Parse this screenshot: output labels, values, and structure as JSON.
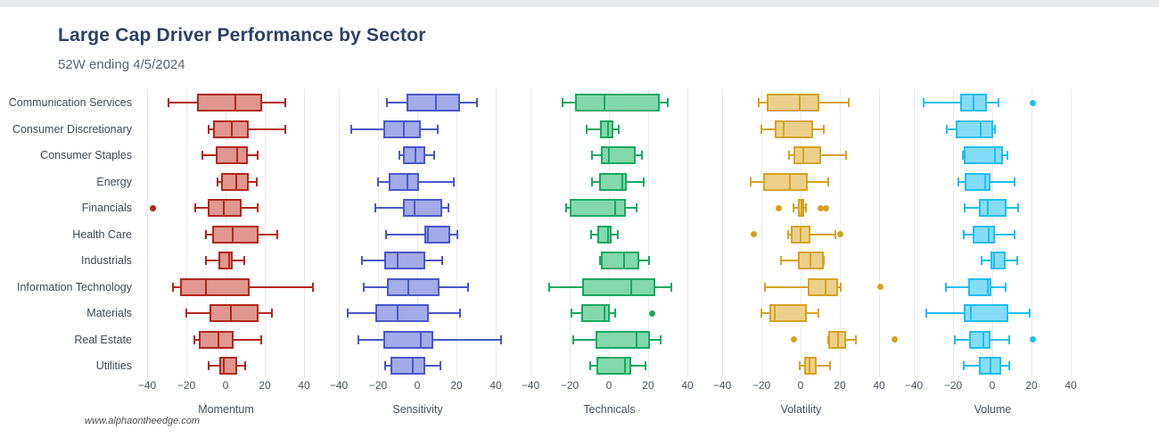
{
  "header": {
    "title": "Large Cap Driver Performance by Sector",
    "subtitle": "52W ending 4/5/2024"
  },
  "watermark": "www.alphaontheedge.com",
  "chart_data": {
    "type": "boxplot",
    "orientation": "horizontal",
    "grid": true,
    "categories": [
      "Communication Services",
      "Consumer Discretionary",
      "Consumer Staples",
      "Energy",
      "Financials",
      "Health Care",
      "Industrials",
      "Information Technology",
      "Materials",
      "Real Estate",
      "Utilities"
    ],
    "axis_ticks": [
      -40,
      -20,
      0,
      20,
      40
    ],
    "axis_range": [
      -44,
      48
    ],
    "panels": [
      {
        "name": "Momentum",
        "stroke": "#b2271d",
        "fill": "#df978f",
        "boxes": [
          {
            "low": -29,
            "q1": -14.5,
            "median": 5,
            "q3": 18.5,
            "high": 30.5,
            "outliers": []
          },
          {
            "low": -8.5,
            "q1": -6.5,
            "median": 3,
            "q3": 12,
            "high": 30.5,
            "outliers": []
          },
          {
            "low": -12,
            "q1": -5,
            "median": 6,
            "q3": 11.5,
            "high": 16.5,
            "outliers": []
          },
          {
            "low": -4,
            "q1": -2.5,
            "median": 5.5,
            "q3": 12,
            "high": 16,
            "outliers": []
          },
          {
            "low": -15.5,
            "q1": -9,
            "median": -1,
            "q3": 8,
            "high": 16.5,
            "outliers": [
              -37
            ]
          },
          {
            "low": -10,
            "q1": -7,
            "median": 3.5,
            "q3": 17,
            "high": 26.5,
            "outliers": []
          },
          {
            "low": -10,
            "q1": -3.5,
            "median": 2,
            "q3": 3.5,
            "high": 9.5,
            "outliers": []
          },
          {
            "low": -27,
            "q1": -23,
            "median": -10,
            "q3": 12.5,
            "high": 44.5,
            "outliers": []
          },
          {
            "low": -20,
            "q1": -8,
            "median": 2.5,
            "q3": 17,
            "high": 23.5,
            "outliers": []
          },
          {
            "low": -16,
            "q1": -13.5,
            "median": -3.5,
            "q3": 4,
            "high": 18,
            "outliers": []
          },
          {
            "low": -8.5,
            "q1": -3,
            "median": -1,
            "q3": 6,
            "high": 10,
            "outliers": []
          }
        ]
      },
      {
        "name": "Sensitivity",
        "stroke": "#4b57c9",
        "fill": "#a3abe8",
        "boxes": [
          {
            "low": -15.5,
            "q1": -5.5,
            "median": 9.5,
            "q3": 22,
            "high": 30.5,
            "outliers": []
          },
          {
            "low": -33.5,
            "q1": -17.5,
            "median": -7,
            "q3": 2,
            "high": 10.5,
            "outliers": []
          },
          {
            "low": -9,
            "q1": -7.5,
            "median": -1,
            "q3": 4,
            "high": 8.5,
            "outliers": []
          },
          {
            "low": -20,
            "q1": -14.5,
            "median": -5,
            "q3": 1,
            "high": 18.5,
            "outliers": []
          },
          {
            "low": -21.5,
            "q1": -7.5,
            "median": -1.5,
            "q3": 12.5,
            "high": 16,
            "outliers": []
          },
          {
            "low": -16,
            "q1": 3.5,
            "median": 5.5,
            "q3": 17,
            "high": 20.5,
            "outliers": []
          },
          {
            "low": -28,
            "q1": -17,
            "median": -10,
            "q3": 4,
            "high": 12.5,
            "outliers": []
          },
          {
            "low": -27.5,
            "q1": -15.5,
            "median": -4.5,
            "q3": 11.5,
            "high": 26,
            "outliers": []
          },
          {
            "low": -35.5,
            "q1": -21.5,
            "median": -10,
            "q3": 6,
            "high": 22,
            "outliers": []
          },
          {
            "low": -30,
            "q1": -17.5,
            "median": 2,
            "q3": 8,
            "high": 42.5,
            "outliers": []
          },
          {
            "low": -16.5,
            "q1": -13.5,
            "median": -2.5,
            "q3": 4,
            "high": 12,
            "outliers": []
          }
        ]
      },
      {
        "name": "Technicals",
        "stroke": "#17a862",
        "fill": "#82d8ab",
        "boxes": [
          {
            "low": -23.5,
            "q1": -17.5,
            "median": -2.5,
            "q3": 26,
            "high": 30,
            "outliers": []
          },
          {
            "low": -11.5,
            "q1": -4.5,
            "median": -0.5,
            "q3": 2.5,
            "high": 5,
            "outliers": []
          },
          {
            "low": -8.5,
            "q1": -4,
            "median": 0,
            "q3": 13.5,
            "high": 17,
            "outliers": []
          },
          {
            "low": -8.5,
            "q1": -5,
            "median": 7,
            "q3": 9,
            "high": 17.5,
            "outliers": []
          },
          {
            "low": -22,
            "q1": -20,
            "median": 3,
            "q3": 8.5,
            "high": 14,
            "outliers": []
          },
          {
            "low": -9,
            "q1": -6,
            "median": -0.5,
            "q3": 1.5,
            "high": 4.5,
            "outliers": []
          },
          {
            "low": -4.5,
            "q1": -4,
            "median": 7.5,
            "q3": 15.5,
            "high": 20.5,
            "outliers": []
          },
          {
            "low": -30.5,
            "q1": -13.5,
            "median": 11.5,
            "q3": 23.5,
            "high": 32,
            "outliers": []
          },
          {
            "low": -19,
            "q1": -14,
            "median": -2.5,
            "q3": 0.5,
            "high": 3,
            "outliers": [
              22
            ]
          },
          {
            "low": -18,
            "q1": -7,
            "median": 14,
            "q3": 21,
            "high": 26.5,
            "outliers": []
          },
          {
            "low": -9.5,
            "q1": -6.5,
            "median": 8,
            "q3": 11.5,
            "high": 18.5,
            "outliers": []
          }
        ]
      },
      {
        "name": "Volatility",
        "stroke": "#d5a321",
        "fill": "#eccf8b",
        "boxes": [
          {
            "low": -21.5,
            "q1": -17.5,
            "median": -0.5,
            "q3": 9.5,
            "high": 24.5,
            "outliers": []
          },
          {
            "low": -20,
            "q1": -13,
            "median": -8.5,
            "q3": 6.5,
            "high": 12,
            "outliers": []
          },
          {
            "low": -6,
            "q1": -3.5,
            "median": 1.5,
            "q3": 10.5,
            "high": 23,
            "outliers": []
          },
          {
            "low": -25.5,
            "q1": -19,
            "median": -5.5,
            "q3": 3.5,
            "high": 14,
            "outliers": []
          },
          {
            "low": -3.5,
            "q1": -1.5,
            "median": 0.5,
            "q3": 2,
            "high": 2.5,
            "outliers": [
              -11,
              10,
              13
            ]
          },
          {
            "low": -6.5,
            "q1": -5,
            "median": 0,
            "q3": 5,
            "high": 17.5,
            "outliers": [
              -24,
              20
            ]
          },
          {
            "low": -10,
            "q1": -1.5,
            "median": 5,
            "q3": 12,
            "high": 12,
            "outliers": []
          },
          {
            "low": -18,
            "q1": 3.5,
            "median": 12.5,
            "q3": 19,
            "high": 20.5,
            "outliers": [
              40.5
            ]
          },
          {
            "low": -20,
            "q1": -16,
            "median": -13,
            "q3": 3,
            "high": 9,
            "outliers": []
          },
          {
            "low": 14,
            "q1": 14,
            "median": 19,
            "q3": 23,
            "high": 28,
            "outliers": [
              -3.5,
              48
            ]
          },
          {
            "low": -0.5,
            "q1": 2,
            "median": 4.5,
            "q3": 8,
            "high": 15,
            "outliers": []
          }
        ]
      },
      {
        "name": "Volume",
        "stroke": "#1fbdf2",
        "fill": "#85dcf8",
        "boxes": [
          {
            "low": -35,
            "q1": -16.5,
            "median": -9.5,
            "q3": -2.5,
            "high": 3,
            "outliers": [
              20.5
            ]
          },
          {
            "low": -23,
            "q1": -18.5,
            "median": -6,
            "q3": 0.5,
            "high": 1.5,
            "outliers": []
          },
          {
            "low": -15,
            "q1": -14.5,
            "median": 1.5,
            "q3": 5.5,
            "high": 7.5,
            "outliers": []
          },
          {
            "low": -17.5,
            "q1": -14,
            "median": -3.5,
            "q3": -1,
            "high": 11.5,
            "outliers": []
          },
          {
            "low": -14,
            "q1": -7,
            "median": -2.5,
            "q3": 7.5,
            "high": 13,
            "outliers": []
          },
          {
            "low": -14.5,
            "q1": -10,
            "median": -2,
            "q3": 1.5,
            "high": 11.5,
            "outliers": []
          },
          {
            "low": -5.5,
            "q1": -1,
            "median": 1,
            "q3": 7,
            "high": 12.5,
            "outliers": []
          },
          {
            "low": -23.5,
            "q1": -12.5,
            "median": -2.5,
            "q3": -0.5,
            "high": 7,
            "outliers": []
          },
          {
            "low": -33.5,
            "q1": -14.5,
            "median": -11,
            "q3": 8,
            "high": 19,
            "outliers": []
          },
          {
            "low": -19,
            "q1": -12,
            "median": -4.5,
            "q3": -1,
            "high": 8.5,
            "outliers": [
              20.5
            ]
          },
          {
            "low": -14.5,
            "q1": -7,
            "median": -1,
            "q3": 4.5,
            "high": 8.5,
            "outliers": []
          }
        ]
      }
    ]
  }
}
